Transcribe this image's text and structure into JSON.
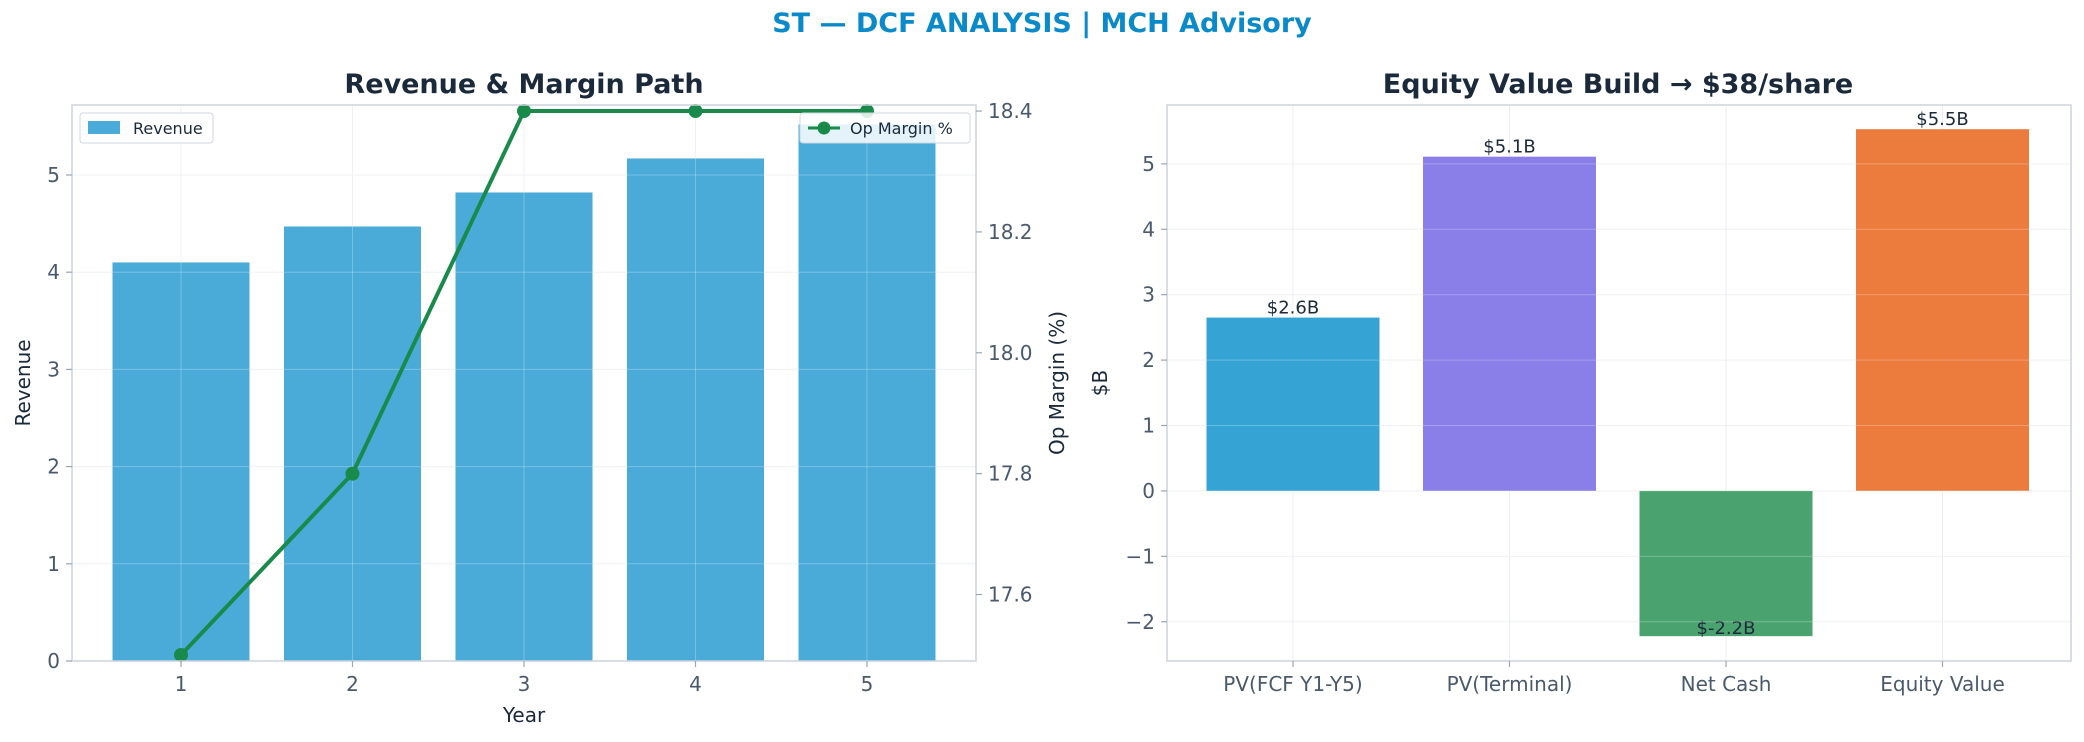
{
  "suptitle": "ST — DCF ANALYSIS | MCH Advisory",
  "chart_data": [
    {
      "type": "bar",
      "title": "Revenue & Margin Path",
      "xlabel": "Year",
      "ylabel": "Revenue",
      "y2label": "Op Margin (%)",
      "categories": [
        "1",
        "2",
        "3",
        "4",
        "5"
      ],
      "ylim": [
        0,
        5.72
      ],
      "yticks": [
        0,
        1,
        2,
        3,
        4,
        5
      ],
      "y2lim": [
        17.49,
        18.41
      ],
      "y2ticks": [
        17.6,
        17.8,
        18.0,
        18.2,
        18.4
      ],
      "series": [
        {
          "name": "Revenue",
          "kind": "bar",
          "axis": "left",
          "color": "#4aabd9",
          "values": [
            4.1,
            4.47,
            4.82,
            5.17,
            5.52
          ]
        },
        {
          "name": "Op Margin %",
          "kind": "line",
          "axis": "right",
          "color": "#1a8a4a",
          "values": [
            17.5,
            17.8,
            18.4,
            18.4,
            18.4
          ]
        }
      ],
      "legend": [
        "upper-left",
        "upper-right"
      ],
      "grid": true
    },
    {
      "type": "bar",
      "title": "Equity Value Build → $38/share",
      "xlabel": "",
      "ylabel": "$B",
      "categories": [
        "PV(FCF Y1-Y5)",
        "PV(Terminal)",
        "Net Cash",
        "Equity Value"
      ],
      "values": [
        2.65,
        5.11,
        -2.22,
        5.53
      ],
      "labels": [
        "$2.6B",
        "$5.1B",
        "$-2.2B",
        "$5.5B"
      ],
      "colors": [
        "#35a3d4",
        "#8a7ee8",
        "#4aa26e",
        "#ec7b3e"
      ],
      "ylim": [
        -2.6,
        5.9
      ],
      "yticks": [
        -2,
        -1,
        0,
        1,
        2,
        3,
        4,
        5
      ],
      "grid": true
    }
  ]
}
